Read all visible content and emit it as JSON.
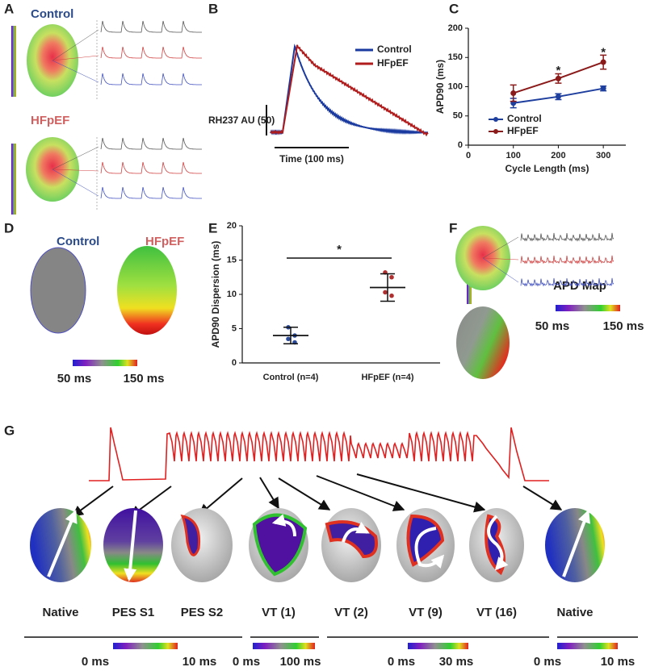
{
  "panel_labels": [
    "A",
    "B",
    "C",
    "D",
    "E",
    "F",
    "G"
  ],
  "panel_a": {
    "control_label": "Control",
    "hfpef_label": "HFpEF"
  },
  "panel_b": {
    "legend": [
      {
        "name": "Control",
        "color": "#1a3aa0"
      },
      {
        "name": "HFpEF",
        "color": "#b01c1c"
      }
    ],
    "y_scale_label": "RH237 AU (50)",
    "x_scale_label": "Time (100 ms)"
  },
  "chart_data": [
    {
      "type": "line",
      "xlabel": "Cycle Length (ms)",
      "ylabel": "APD90 (ms)",
      "x": [
        100,
        200,
        300
      ],
      "xlim": [
        0,
        350
      ],
      "xticks": [
        0,
        100,
        200,
        300
      ],
      "ylim": [
        0,
        200
      ],
      "yticks": [
        0,
        50,
        100,
        150,
        200
      ],
      "legend": "lower left",
      "series": [
        {
          "name": "Control",
          "color": "#1f3f9f",
          "values": [
            72,
            83,
            97
          ],
          "errors": [
            8,
            5,
            4
          ]
        },
        {
          "name": "HFpEF",
          "color": "#8b1a1a",
          "values": [
            89,
            114,
            142
          ],
          "errors": [
            14,
            8,
            12
          ]
        }
      ],
      "annotations": [
        {
          "text": "*",
          "x": 200,
          "y": 127
        },
        {
          "text": "*",
          "x": 300,
          "y": 158
        }
      ]
    },
    {
      "type": "dot",
      "ylabel": "APD90 Dispersion (ms)",
      "categories": [
        "Control (n=4)",
        "HFpEF (n=4)"
      ],
      "ylim": [
        0,
        20
      ],
      "yticks": [
        0,
        5,
        10,
        15,
        20
      ],
      "colors": [
        "#2a4a9a",
        "#b03030"
      ],
      "values": [
        [
          5.2,
          4.0,
          3.5,
          3.0
        ],
        [
          13.2,
          12.5,
          10.3,
          9.8
        ]
      ],
      "means": [
        4,
        11
      ],
      "errors": [
        1.2,
        2
      ],
      "annotations": [
        {
          "text": "*",
          "y": 15.3
        }
      ]
    }
  ],
  "panel_d": {
    "control_label": "Control",
    "hfpef_label": "HFpEF",
    "scale_min": "50 ms",
    "scale_max": "150 ms"
  },
  "panel_f": {
    "title": "APD Map",
    "scale_min": "50 ms",
    "scale_max": "150 ms"
  },
  "panel_g": {
    "labels": [
      "Native",
      "PES S1",
      "PES S2",
      "VT (1)",
      "VT (2)",
      "VT (9)",
      "VT (16)",
      "Native"
    ],
    "scales": [
      {
        "min": "0 ms",
        "max": "10 ms"
      },
      {
        "min": "0 ms",
        "max": "100 ms"
      },
      {
        "min": "0 ms",
        "max": "30 ms"
      },
      {
        "min": "0 ms",
        "max": "10 ms"
      }
    ]
  }
}
